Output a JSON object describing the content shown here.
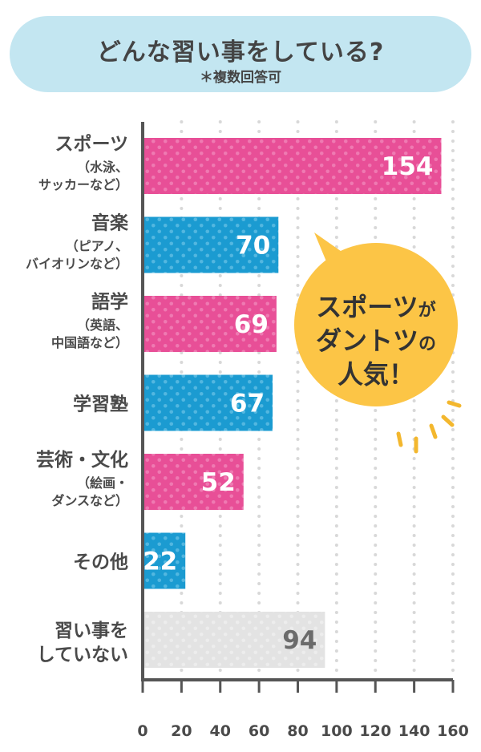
{
  "header": {
    "title": "どんな習い事をしている?",
    "subtitle": "＊複数回答可"
  },
  "callout": {
    "line1": "スポーツ",
    "line1_small": "が",
    "line2": "ダントツ",
    "line2_small": "の",
    "line3": "人気！",
    "color": "#fcc546"
  },
  "colors": {
    "pink": "#e84f97",
    "blue": "#1b9bd1",
    "gray": "#e3e3e3",
    "dot_grid": "#d8d8d8",
    "axis": "#555555"
  },
  "chart_data": {
    "type": "bar",
    "orientation": "horizontal",
    "categories": [
      {
        "label": "スポーツ",
        "sub": [
          "（水泳、",
          "サッカーなど）"
        ]
      },
      {
        "label": "音楽",
        "sub": [
          "（ピアノ、",
          "バイオリンなど）"
        ]
      },
      {
        "label": "語学",
        "sub": [
          "（英語、",
          "中国語など）"
        ]
      },
      {
        "label": "学習塾",
        "sub": []
      },
      {
        "label": "芸術・文化",
        "sub": [
          "（絵画・",
          "ダンスなど）"
        ]
      },
      {
        "label": "その他",
        "sub": []
      },
      {
        "label": "習い事を",
        "sub": [],
        "label2": "していない"
      }
    ],
    "values": [
      154,
      70,
      69,
      67,
      52,
      22,
      94
    ],
    "bar_colors": [
      "pink",
      "blue",
      "pink",
      "blue",
      "pink",
      "blue",
      "gray"
    ],
    "value_labels": [
      "154",
      "70",
      "69",
      "67",
      "52",
      "22",
      "94"
    ],
    "xlim": [
      0,
      160
    ],
    "xticks": [
      "0",
      "20",
      "40",
      "60",
      "80",
      "100",
      "120",
      "140",
      "160"
    ],
    "grid": "dotted vertical"
  }
}
